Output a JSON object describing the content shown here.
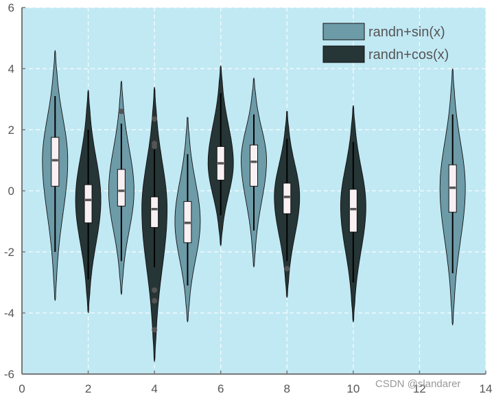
{
  "chart_data": {
    "type": "violin",
    "title": "",
    "xlabel": "",
    "ylabel": "",
    "xlim": [
      0,
      14
    ],
    "ylim": [
      -6,
      6
    ],
    "xticks": [
      "0",
      "2",
      "4",
      "6",
      "8",
      "10",
      "12",
      "14"
    ],
    "yticks": [
      "-6",
      "-4",
      "-2",
      "0",
      "2",
      "4",
      "6"
    ],
    "grid": true,
    "legend_position": "top-right",
    "colors": {
      "background": "#c1e9f4",
      "sin_fill": "#6d9ba8",
      "cos_fill": "#263536",
      "box_fill": "#f8f0f3",
      "median": "#555555",
      "outlier": "#555555"
    },
    "series": [
      {
        "name": "randn+sin(x)",
        "violins": [
          {
            "x": 1,
            "min": -3.6,
            "max": 4.6,
            "q1": 0.15,
            "median": 1.0,
            "q3": 1.75,
            "whisker_low": -2.0,
            "whisker_high": 3.1,
            "peak": 1.0,
            "outliers": []
          },
          {
            "x": 3,
            "min": -3.4,
            "max": 3.6,
            "q1": -0.5,
            "median": 0.0,
            "q3": 0.7,
            "whisker_low": -2.3,
            "whisker_high": 2.2,
            "peak": 0.0,
            "outliers": [
              2.6
            ]
          },
          {
            "x": 5,
            "min": -4.3,
            "max": 2.4,
            "q1": -1.7,
            "median": -1.05,
            "q3": -0.35,
            "whisker_low": -3.1,
            "whisker_high": 1.2,
            "peak": -1.0,
            "outliers": []
          },
          {
            "x": 7,
            "min": -2.5,
            "max": 3.7,
            "q1": 0.15,
            "median": 0.95,
            "q3": 1.5,
            "whisker_low": -1.3,
            "whisker_high": 2.5,
            "peak": 1.0,
            "outliers": []
          },
          {
            "x": 13,
            "min": -4.4,
            "max": 4.0,
            "q1": -0.7,
            "median": 0.1,
            "q3": 0.85,
            "whisker_low": -2.7,
            "whisker_high": 2.5,
            "peak": 0.1,
            "outliers": []
          }
        ]
      },
      {
        "name": "randn+cos(x)",
        "violins": [
          {
            "x": 2,
            "min": -4.0,
            "max": 3.3,
            "q1": -1.05,
            "median": -0.3,
            "q3": 0.2,
            "whisker_low": -2.9,
            "whisker_high": 2.0,
            "peak": -0.3,
            "outliers": []
          },
          {
            "x": 4,
            "min": -5.6,
            "max": 3.4,
            "q1": -1.2,
            "median": -0.6,
            "q3": -0.2,
            "whisker_low": -2.5,
            "whisker_high": 1.4,
            "peak": -0.6,
            "outliers": [
              2.35,
              1.55,
              1.45,
              -3.25,
              -3.6,
              -4.55
            ]
          },
          {
            "x": 6,
            "min": -1.8,
            "max": 4.1,
            "q1": 0.35,
            "median": 0.9,
            "q3": 1.45,
            "whisker_low": -0.8,
            "whisker_high": 3.2,
            "peak": 0.9,
            "outliers": []
          },
          {
            "x": 8,
            "min": -3.5,
            "max": 2.6,
            "q1": -0.75,
            "median": -0.2,
            "q3": 0.25,
            "whisker_low": -2.3,
            "whisker_high": 1.7,
            "peak": -0.2,
            "outliers": [
              -2.55
            ]
          },
          {
            "x": 10,
            "min": -4.3,
            "max": 2.8,
            "q1": -1.35,
            "median": -0.6,
            "q3": 0.05,
            "whisker_low": -3.0,
            "whisker_high": 1.6,
            "peak": -0.5,
            "outliers": []
          }
        ]
      }
    ]
  },
  "watermark": "CSDN @slandarer"
}
